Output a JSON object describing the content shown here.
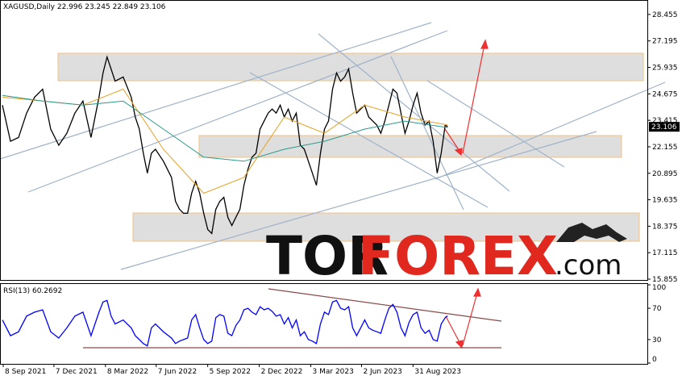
{
  "chart_data": {
    "type": "line",
    "title": "XAGUSD,Daily  22.996 23.245 22.849 23.106",
    "x": [
      0,
      10,
      20,
      30,
      40,
      50,
      60,
      70,
      80,
      90,
      100,
      110,
      120,
      125,
      130,
      135,
      140,
      150,
      160,
      165,
      170,
      175,
      180,
      185,
      190,
      200,
      210,
      215,
      220,
      225,
      230,
      235,
      240,
      245,
      250,
      255,
      260,
      265,
      270,
      275,
      280,
      285,
      290,
      295,
      300,
      305,
      310,
      315,
      320,
      325,
      330,
      335,
      340,
      345,
      350,
      355,
      360,
      365,
      370,
      375,
      380,
      385,
      390,
      395,
      400,
      405,
      410,
      415,
      420,
      425,
      430,
      435,
      440,
      445,
      450,
      455,
      460,
      465,
      470,
      475,
      480,
      485,
      490,
      495,
      500,
      505,
      510,
      515,
      520,
      525,
      530,
      535,
      540,
      545,
      550,
      553
    ],
    "xlim": [
      -2,
      801
    ],
    "xticks": [
      {
        "value": 1,
        "label": "8 Sep 2021"
      },
      {
        "value": 64,
        "label": "7 Dec 2021"
      },
      {
        "value": 128,
        "label": "8 Mar 2022"
      },
      {
        "value": 191,
        "label": "7 Jun 2022"
      },
      {
        "value": 255,
        "label": "5 Sep 2022"
      },
      {
        "value": 319,
        "label": "2 Dec 2022"
      },
      {
        "value": 383,
        "label": "3 Mar 2023"
      },
      {
        "value": 446,
        "label": "2 Jun 2023"
      },
      {
        "value": 510,
        "label": "31 Aug 2023"
      }
    ],
    "ylim": [
      15.817,
      29.104
    ],
    "yticks": [
      15.855,
      17.115,
      18.375,
      19.635,
      20.895,
      22.155,
      23.415,
      24.675,
      25.935,
      27.195,
      28.455
    ],
    "last_price": 23.106,
    "series": [
      {
        "color": "#000000",
        "values": [
          24.14,
          22.42,
          22.6,
          23.76,
          24.52,
          24.9,
          23.0,
          22.23,
          22.8,
          23.76,
          24.33,
          22.6,
          24.52,
          25.67,
          26.43,
          25.86,
          25.28,
          25.48,
          24.52,
          23.57,
          23.0,
          21.85,
          20.9,
          21.85,
          22.04,
          21.47,
          20.7,
          19.56,
          19.18,
          18.99,
          18.99,
          19.94,
          20.51,
          19.94,
          18.99,
          18.22,
          18.03,
          19.18,
          19.56,
          19.75,
          18.8,
          18.41,
          18.8,
          19.18,
          20.32,
          21.09,
          21.66,
          21.85,
          23.0,
          23.38,
          23.76,
          23.95,
          23.76,
          24.14,
          23.57,
          23.95,
          23.38,
          23.76,
          22.23,
          22.04,
          21.47,
          20.9,
          20.32,
          21.85,
          23.0,
          23.38,
          24.9,
          25.67,
          25.28,
          25.48,
          25.86,
          24.71,
          23.76,
          23.95,
          24.14,
          23.57,
          23.38,
          23.19,
          22.8,
          23.38,
          24.14,
          24.9,
          24.71,
          23.76,
          22.8,
          23.38,
          24.14,
          24.71,
          23.76,
          23.19,
          23.38,
          22.42,
          20.9,
          21.85,
          23.19,
          23.106
        ]
      },
      {
        "color": "#e8a020",
        "x": [
          0,
          50,
          100,
          150,
          200,
          250,
          300,
          350,
          400,
          450,
          500,
          553
        ],
        "values": [
          24.52,
          24.33,
          24.14,
          24.9,
          22.04,
          19.94,
          20.7,
          23.57,
          22.8,
          24.14,
          23.57,
          23.19
        ]
      },
      {
        "color": "#2a9a8a",
        "x": [
          0,
          50,
          100,
          150,
          200,
          250,
          300,
          350,
          400,
          450,
          500,
          553
        ],
        "values": [
          24.6,
          24.33,
          24.14,
          24.33,
          23.0,
          21.66,
          21.47,
          22.04,
          22.42,
          23.0,
          23.38,
          23.07
        ]
      }
    ],
    "rsi": {
      "title": "RSI(13)",
      "value": 60.2692,
      "color": "#0000ff",
      "ylim": [
        0,
        100
      ],
      "yticks": [
        0,
        30,
        70,
        100
      ],
      "values": [
        55,
        35,
        40,
        60,
        65,
        68,
        40,
        32,
        45,
        60,
        65,
        35,
        65,
        78,
        80,
        60,
        50,
        55,
        45,
        35,
        30,
        25,
        22,
        45,
        50,
        40,
        32,
        25,
        28,
        30,
        32,
        55,
        62,
        45,
        30,
        25,
        28,
        58,
        62,
        60,
        38,
        35,
        48,
        55,
        68,
        70,
        65,
        62,
        72,
        68,
        70,
        66,
        60,
        62,
        50,
        58,
        45,
        55,
        35,
        40,
        30,
        28,
        25,
        50,
        65,
        62,
        78,
        80,
        70,
        68,
        72,
        45,
        35,
        45,
        55,
        45,
        42,
        40,
        38,
        55,
        70,
        75,
        65,
        45,
        35,
        52,
        62,
        65,
        45,
        38,
        42,
        30,
        28,
        50,
        58,
        60.2692
      ]
    },
    "watermark": {
      "part1": "TOR",
      "part2": "FOREX",
      "part3": ".com"
    }
  }
}
